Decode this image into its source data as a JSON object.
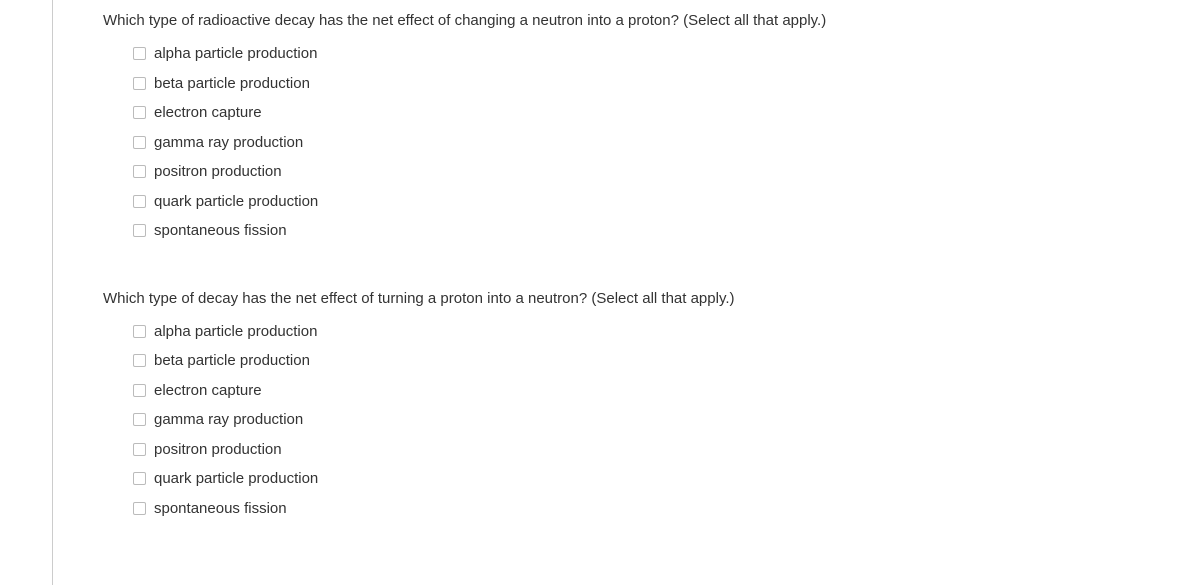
{
  "questions": [
    {
      "prompt": "Which type of radioactive decay has the net effect of changing a neutron into a proton? (Select all that apply.)",
      "options": [
        "alpha particle production",
        "beta particle production",
        "electron capture",
        "gamma ray production",
        "positron production",
        "quark particle production",
        "spontaneous fission"
      ]
    },
    {
      "prompt": "Which type of decay has the net effect of turning a proton into a neutron? (Select all that apply.)",
      "options": [
        "alpha particle production",
        "beta particle production",
        "electron capture",
        "gamma ray production",
        "positron production",
        "quark particle production",
        "spontaneous fission"
      ]
    }
  ]
}
